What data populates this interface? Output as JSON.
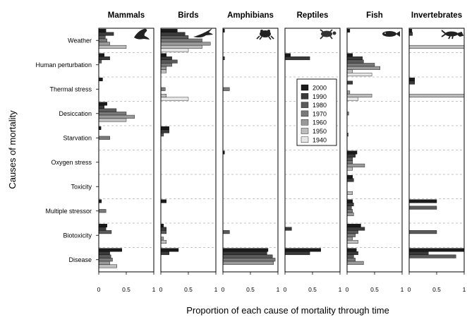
{
  "chart_data": {
    "type": "bar",
    "orientation": "horizontal",
    "xlabel": "Proportion of each cause of mortality through time",
    "ylabel": "Causes of mortality",
    "xlim": [
      0,
      1
    ],
    "xticks": [
      "0",
      "0.5",
      "1"
    ],
    "categories": [
      "Weather",
      "Human perturbation",
      "Thermal stress",
      "Desiccation",
      "Starvation",
      "Oxygen stress",
      "Toxicity",
      "Multiple stressor",
      "Biotoxicity",
      "Disease"
    ],
    "legend": {
      "position": "inside-right",
      "entries": [
        "2000",
        "1990",
        "1980",
        "1970",
        "1960",
        "1950",
        "1940"
      ],
      "colors": [
        "#1a1a1a",
        "#3a3a3a",
        "#5a5a5a",
        "#7a7a7a",
        "#9a9a9a",
        "#bdbdbd",
        "#e6e6e6"
      ]
    },
    "panels": [
      {
        "title": "Mammals",
        "icon": "seal-silhouette-icon",
        "values": [
          [
            0.13,
            0.27,
            0.12,
            0.15,
            0.2,
            0.5,
            0
          ],
          [
            0.1,
            0.2,
            0.05,
            0,
            0,
            0,
            0
          ],
          [
            0.07,
            0,
            0,
            0,
            0,
            0,
            0
          ],
          [
            0.15,
            0.1,
            0.32,
            0.5,
            0.65,
            0.5,
            0
          ],
          [
            0.04,
            0,
            0,
            0.2,
            0,
            0,
            0
          ],
          [
            0,
            0,
            0,
            0,
            0,
            0,
            0
          ],
          [
            0,
            0,
            0,
            0,
            0,
            0,
            0
          ],
          [
            0.05,
            0,
            0,
            0.13,
            0,
            0,
            0
          ],
          [
            0.15,
            0.13,
            0.23,
            0,
            0,
            0,
            0
          ],
          [
            0.42,
            0.2,
            0.22,
            0.25,
            0.2,
            0.33,
            0
          ]
        ]
      },
      {
        "title": "Birds",
        "icon": "bird-silhouette-icon",
        "values": [
          [
            0.3,
            0.44,
            0.5,
            0.75,
            0.9,
            0.75,
            0.5
          ],
          [
            0.1,
            0.2,
            0.3,
            0.2,
            0.1,
            0.1,
            0
          ],
          [
            0,
            0,
            0,
            0.08,
            0,
            0.1,
            0.5
          ],
          [
            0,
            0,
            0,
            0,
            0,
            0,
            0
          ],
          [
            0.15,
            0.15,
            0.05,
            0,
            0,
            0,
            0
          ],
          [
            0,
            0,
            0,
            0,
            0,
            0,
            0
          ],
          [
            0,
            0,
            0,
            0,
            0,
            0,
            0
          ],
          [
            0.1,
            0,
            0,
            0,
            0,
            0,
            0
          ],
          [
            0.05,
            0.1,
            0.1,
            0,
            0.05,
            0.1,
            0
          ],
          [
            0.32,
            0.15,
            0,
            0,
            0,
            0,
            0
          ]
        ]
      },
      {
        "title": "Amphibians",
        "icon": "frog-silhouette-icon",
        "values": [
          [
            0.03,
            0,
            0,
            0,
            0,
            0,
            0
          ],
          [
            0,
            0.03,
            0,
            0,
            0,
            0,
            0
          ],
          [
            0,
            0,
            0,
            0.12,
            0,
            0,
            0
          ],
          [
            0,
            0,
            0,
            0,
            0,
            0,
            0
          ],
          [
            0,
            0,
            0,
            0,
            0,
            0,
            0
          ],
          [
            0.03,
            0,
            0,
            0,
            0,
            0,
            0
          ],
          [
            0,
            0,
            0,
            0,
            0,
            0,
            0
          ],
          [
            0,
            0,
            0,
            0,
            0,
            0,
            0
          ],
          [
            0,
            0,
            0.12,
            0,
            0,
            0,
            0
          ],
          [
            0.82,
            0.8,
            0.9,
            0.95,
            0.92,
            0,
            0
          ]
        ]
      },
      {
        "title": "Reptiles",
        "icon": "turtle-silhouette-icon",
        "values": [
          [
            0,
            0,
            0,
            0,
            0,
            0,
            0
          ],
          [
            0.1,
            0.45,
            0,
            0,
            0,
            0,
            0
          ],
          [
            0,
            0,
            0,
            0,
            0,
            0,
            0
          ],
          [
            0,
            0,
            0,
            0,
            0,
            0,
            0
          ],
          [
            0,
            0,
            0,
            0,
            0,
            0,
            0
          ],
          [
            0,
            0,
            0,
            0,
            0,
            0,
            0
          ],
          [
            0,
            0,
            0,
            0,
            0,
            0,
            0
          ],
          [
            0,
            0,
            0,
            0,
            0,
            0,
            0
          ],
          [
            0,
            0.12,
            0,
            0,
            0,
            0,
            0
          ],
          [
            0.65,
            0.45,
            0,
            0,
            0,
            0,
            0
          ]
        ]
      },
      {
        "title": "Fish",
        "icon": "fish-silhouette-icon",
        "values": [
          [
            0.05,
            0,
            0,
            0,
            0,
            0,
            0
          ],
          [
            0.1,
            0.28,
            0.3,
            0.5,
            0.6,
            0.1,
            0.45
          ],
          [
            0,
            0.1,
            0,
            0,
            0.05,
            0.45,
            0.2
          ],
          [
            0,
            0,
            0,
            0.03,
            0,
            0,
            0
          ],
          [
            0,
            0,
            0.02,
            0,
            0,
            0,
            0
          ],
          [
            0.18,
            0.15,
            0.1,
            0.1,
            0.32,
            0.1,
            0
          ],
          [
            0.1,
            0.12,
            0,
            0,
            0,
            0.1,
            0
          ],
          [
            0.1,
            0.12,
            0.08,
            0.1,
            0.12,
            0,
            0
          ],
          [
            0.25,
            0.32,
            0.2,
            0.15,
            0.1,
            0.2,
            0
          ],
          [
            0.17,
            0.2,
            0.12,
            0.15,
            0.3,
            0,
            0
          ]
        ]
      },
      {
        "title": "Invertebrates",
        "icon": "lobster-silhouette-icon",
        "values": [
          [
            0.05,
            0.06,
            0,
            0,
            0,
            1.0,
            0
          ],
          [
            0,
            0,
            0,
            0,
            0,
            0,
            0
          ],
          [
            0.1,
            0.1,
            0,
            0,
            0,
            1.0,
            0
          ],
          [
            0,
            0,
            0,
            0,
            0,
            0,
            0
          ],
          [
            0,
            0,
            0,
            0,
            0,
            0,
            0
          ],
          [
            0,
            0,
            0,
            0,
            0,
            0,
            0
          ],
          [
            0,
            0,
            0,
            0,
            0,
            0,
            0
          ],
          [
            0.5,
            0,
            0.5,
            0,
            0,
            0,
            0
          ],
          [
            0,
            0,
            0.5,
            0,
            0,
            0,
            0
          ],
          [
            1.0,
            0.35,
            0.85,
            0,
            0,
            0,
            0
          ]
        ]
      }
    ]
  }
}
